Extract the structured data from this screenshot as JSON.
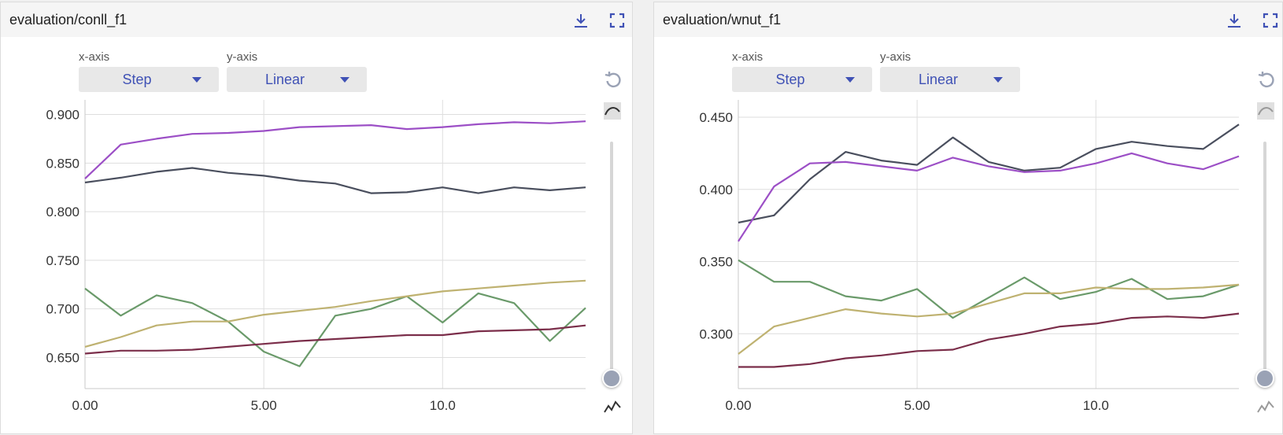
{
  "panels": [
    {
      "title": "evaluation/conll_f1",
      "download_icon": "download-icon",
      "fullscreen_icon": "fullscreen-icon",
      "x_axis_label": "x-axis",
      "y_axis_label": "y-axis",
      "x_axis_value": "Step",
      "y_axis_value": "Linear"
    },
    {
      "title": "evaluation/wnut_f1",
      "download_icon": "download-icon",
      "fullscreen_icon": "fullscreen-icon",
      "x_axis_label": "x-axis",
      "y_axis_label": "y-axis",
      "x_axis_value": "Step",
      "y_axis_value": "Linear"
    }
  ],
  "colors": {
    "accent": "#3f51b5",
    "purple": "#9c4fc6",
    "dark": "#4a4f5e",
    "green": "#6a9a6a",
    "olive": "#bfb271",
    "maroon": "#7b2e4a"
  },
  "chart_data": [
    {
      "type": "line",
      "title": "evaluation/conll_f1",
      "x_ticks": [
        "0.00",
        "5.00",
        "10.0"
      ],
      "y_ticks": [
        "0.650",
        "0.700",
        "0.750",
        "0.800",
        "0.850",
        "0.900"
      ],
      "xlim": [
        0,
        14
      ],
      "ylim": [
        0.618,
        0.915
      ],
      "grid": true,
      "x": [
        0,
        1,
        2,
        3,
        4,
        5,
        6,
        7,
        8,
        9,
        10,
        11,
        12,
        13,
        14
      ],
      "series": [
        {
          "color": "#9c4fc6",
          "values": [
            0.834,
            0.869,
            0.875,
            0.88,
            0.881,
            0.883,
            0.887,
            0.888,
            0.889,
            0.885,
            0.887,
            0.89,
            0.892,
            0.891,
            0.893
          ]
        },
        {
          "color": "#4a4f5e",
          "values": [
            0.83,
            0.835,
            0.841,
            0.845,
            0.84,
            0.837,
            0.832,
            0.829,
            0.819,
            0.82,
            0.825,
            0.819,
            0.825,
            0.822,
            0.825
          ]
        },
        {
          "color": "#6a9a6a",
          "values": [
            0.721,
            0.693,
            0.714,
            0.706,
            0.687,
            0.656,
            0.641,
            0.693,
            0.7,
            0.713,
            0.686,
            0.716,
            0.706,
            0.667,
            0.701
          ]
        },
        {
          "color": "#bfb271",
          "values": [
            0.661,
            0.671,
            0.683,
            0.687,
            0.687,
            0.694,
            0.698,
            0.702,
            0.708,
            0.713,
            0.718,
            0.721,
            0.724,
            0.727,
            0.729
          ]
        },
        {
          "color": "#7b2e4a",
          "values": [
            0.654,
            0.657,
            0.657,
            0.658,
            0.661,
            0.664,
            0.667,
            0.669,
            0.671,
            0.673,
            0.673,
            0.677,
            0.678,
            0.679,
            0.683
          ]
        }
      ]
    },
    {
      "type": "line",
      "title": "evaluation/wnut_f1",
      "x_ticks": [
        "0.00",
        "5.00",
        "10.0"
      ],
      "y_ticks": [
        "0.300",
        "0.350",
        "0.400",
        "0.450"
      ],
      "xlim": [
        0,
        14
      ],
      "ylim": [
        0.262,
        0.462
      ],
      "grid": true,
      "x": [
        0,
        1,
        2,
        3,
        4,
        5,
        6,
        7,
        8,
        9,
        10,
        11,
        12,
        13,
        14
      ],
      "series": [
        {
          "color": "#4a4f5e",
          "values": [
            0.377,
            0.382,
            0.407,
            0.426,
            0.42,
            0.417,
            0.436,
            0.419,
            0.413,
            0.415,
            0.428,
            0.433,
            0.43,
            0.428,
            0.445
          ]
        },
        {
          "color": "#9c4fc6",
          "values": [
            0.364,
            0.402,
            0.418,
            0.419,
            0.416,
            0.413,
            0.422,
            0.416,
            0.412,
            0.413,
            0.418,
            0.425,
            0.418,
            0.414,
            0.423
          ]
        },
        {
          "color": "#6a9a6a",
          "values": [
            0.351,
            0.336,
            0.336,
            0.326,
            0.323,
            0.331,
            0.311,
            0.325,
            0.339,
            0.324,
            0.329,
            0.338,
            0.324,
            0.326,
            0.334
          ]
        },
        {
          "color": "#bfb271",
          "values": [
            0.286,
            0.305,
            0.311,
            0.317,
            0.314,
            0.312,
            0.314,
            0.321,
            0.328,
            0.328,
            0.332,
            0.331,
            0.331,
            0.332,
            0.334
          ]
        },
        {
          "color": "#7b2e4a",
          "values": [
            0.277,
            0.277,
            0.279,
            0.283,
            0.285,
            0.288,
            0.289,
            0.296,
            0.3,
            0.305,
            0.307,
            0.311,
            0.312,
            0.311,
            0.314
          ]
        }
      ]
    }
  ]
}
